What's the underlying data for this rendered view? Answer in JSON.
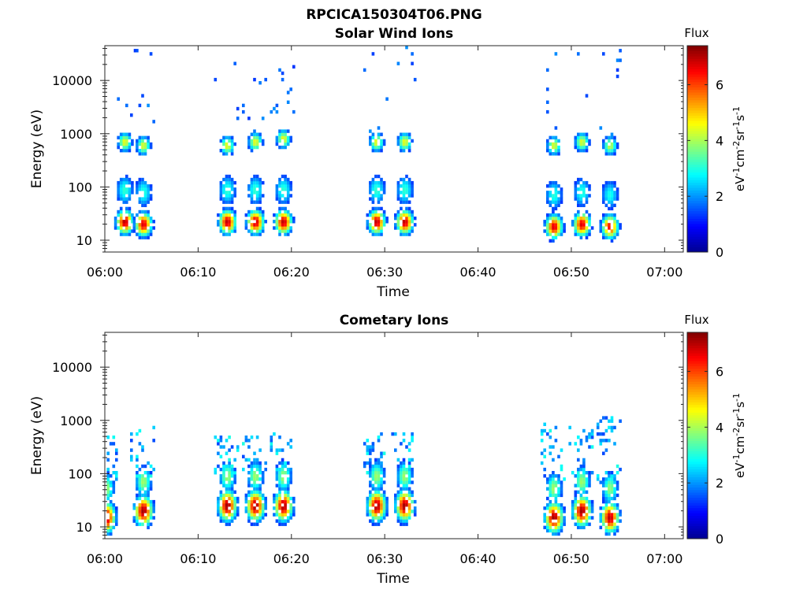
{
  "figure_title": "RPCICA150304T06.PNG",
  "colormap": [
    "#00008f",
    "#0000ff",
    "#0080ff",
    "#00ffff",
    "#80ff80",
    "#ffff00",
    "#ff8000",
    "#ff0000",
    "#800000"
  ],
  "chart_data": [
    {
      "type": "heatmap",
      "title": "Solar Wind Ions",
      "xlabel": "Time",
      "ylabel": "Energy (eV)",
      "x_ticks": [
        "06:00",
        "06:10",
        "06:20",
        "06:30",
        "06:40",
        "06:50",
        "07:00"
      ],
      "y_ticks": [
        "10",
        "100",
        "1000",
        "10000"
      ],
      "y_scale": "log",
      "xlim": [
        "06:00",
        "07:02"
      ],
      "ylim": [
        6,
        45000
      ],
      "colorbar": {
        "label": "Flux",
        "units": "eV-1cm-2sr-1s-1",
        "ticks": [
          0,
          2,
          4,
          6
        ],
        "range": [
          0,
          7.4
        ]
      },
      "bursts": [
        {
          "time": "06:02",
          "peak": 7.0,
          "high_band_e": 700,
          "low_band_e": 22
        },
        {
          "time": "06:04",
          "peak": 6.8,
          "high_band_e": 600,
          "low_band_e": 20
        },
        {
          "time": "06:13",
          "peak": 7.0,
          "high_band_e": 600,
          "low_band_e": 22
        },
        {
          "time": "06:16",
          "peak": 7.0,
          "high_band_e": 700,
          "low_band_e": 22
        },
        {
          "time": "06:19",
          "peak": 7.0,
          "high_band_e": 800,
          "low_band_e": 22
        },
        {
          "time": "06:29",
          "peak": 7.0,
          "high_band_e": 700,
          "low_band_e": 22
        },
        {
          "time": "06:32",
          "peak": 7.0,
          "high_band_e": 700,
          "low_band_e": 22
        },
        {
          "time": "06:48",
          "peak": 6.8,
          "high_band_e": 600,
          "low_band_e": 18
        },
        {
          "time": "06:51",
          "peak": 6.8,
          "high_band_e": 700,
          "low_band_e": 20
        },
        {
          "time": "06:54",
          "peak": 6.5,
          "high_band_e": 600,
          "low_band_e": 18
        }
      ]
    },
    {
      "type": "heatmap",
      "title": "Cometary Ions",
      "xlabel": "Time",
      "ylabel": "Energy (eV)",
      "x_ticks": [
        "06:00",
        "06:10",
        "06:20",
        "06:30",
        "06:40",
        "06:50",
        "07:00"
      ],
      "y_ticks": [
        "10",
        "100",
        "1000",
        "10000"
      ],
      "y_scale": "log",
      "xlim": [
        "06:00",
        "07:02"
      ],
      "ylim": [
        6,
        45000
      ],
      "colorbar": {
        "label": "Flux",
        "units": "eV-1cm-2sr-1s-1",
        "ticks": [
          0,
          2,
          4,
          6
        ],
        "range": [
          0,
          7.4
        ]
      },
      "bursts": [
        {
          "time": "06:00",
          "peak": 7.2,
          "center_e": 15,
          "top_e": 700
        },
        {
          "time": "06:04",
          "peak": 7.2,
          "center_e": 20,
          "top_e": 800
        },
        {
          "time": "06:13",
          "peak": 7.2,
          "center_e": 25,
          "top_e": 500
        },
        {
          "time": "06:16",
          "peak": 7.2,
          "center_e": 25,
          "top_e": 500
        },
        {
          "time": "06:19",
          "peak": 7.2,
          "center_e": 25,
          "top_e": 600
        },
        {
          "time": "06:29",
          "peak": 7.2,
          "center_e": 25,
          "top_e": 600
        },
        {
          "time": "06:32",
          "peak": 7.2,
          "center_e": 25,
          "top_e": 600
        },
        {
          "time": "06:48",
          "peak": 7.2,
          "center_e": 15,
          "top_e": 900
        },
        {
          "time": "06:51",
          "peak": 7.2,
          "center_e": 20,
          "top_e": 800
        },
        {
          "time": "06:54",
          "peak": 7.0,
          "center_e": 15,
          "top_e": 1200
        }
      ]
    }
  ]
}
